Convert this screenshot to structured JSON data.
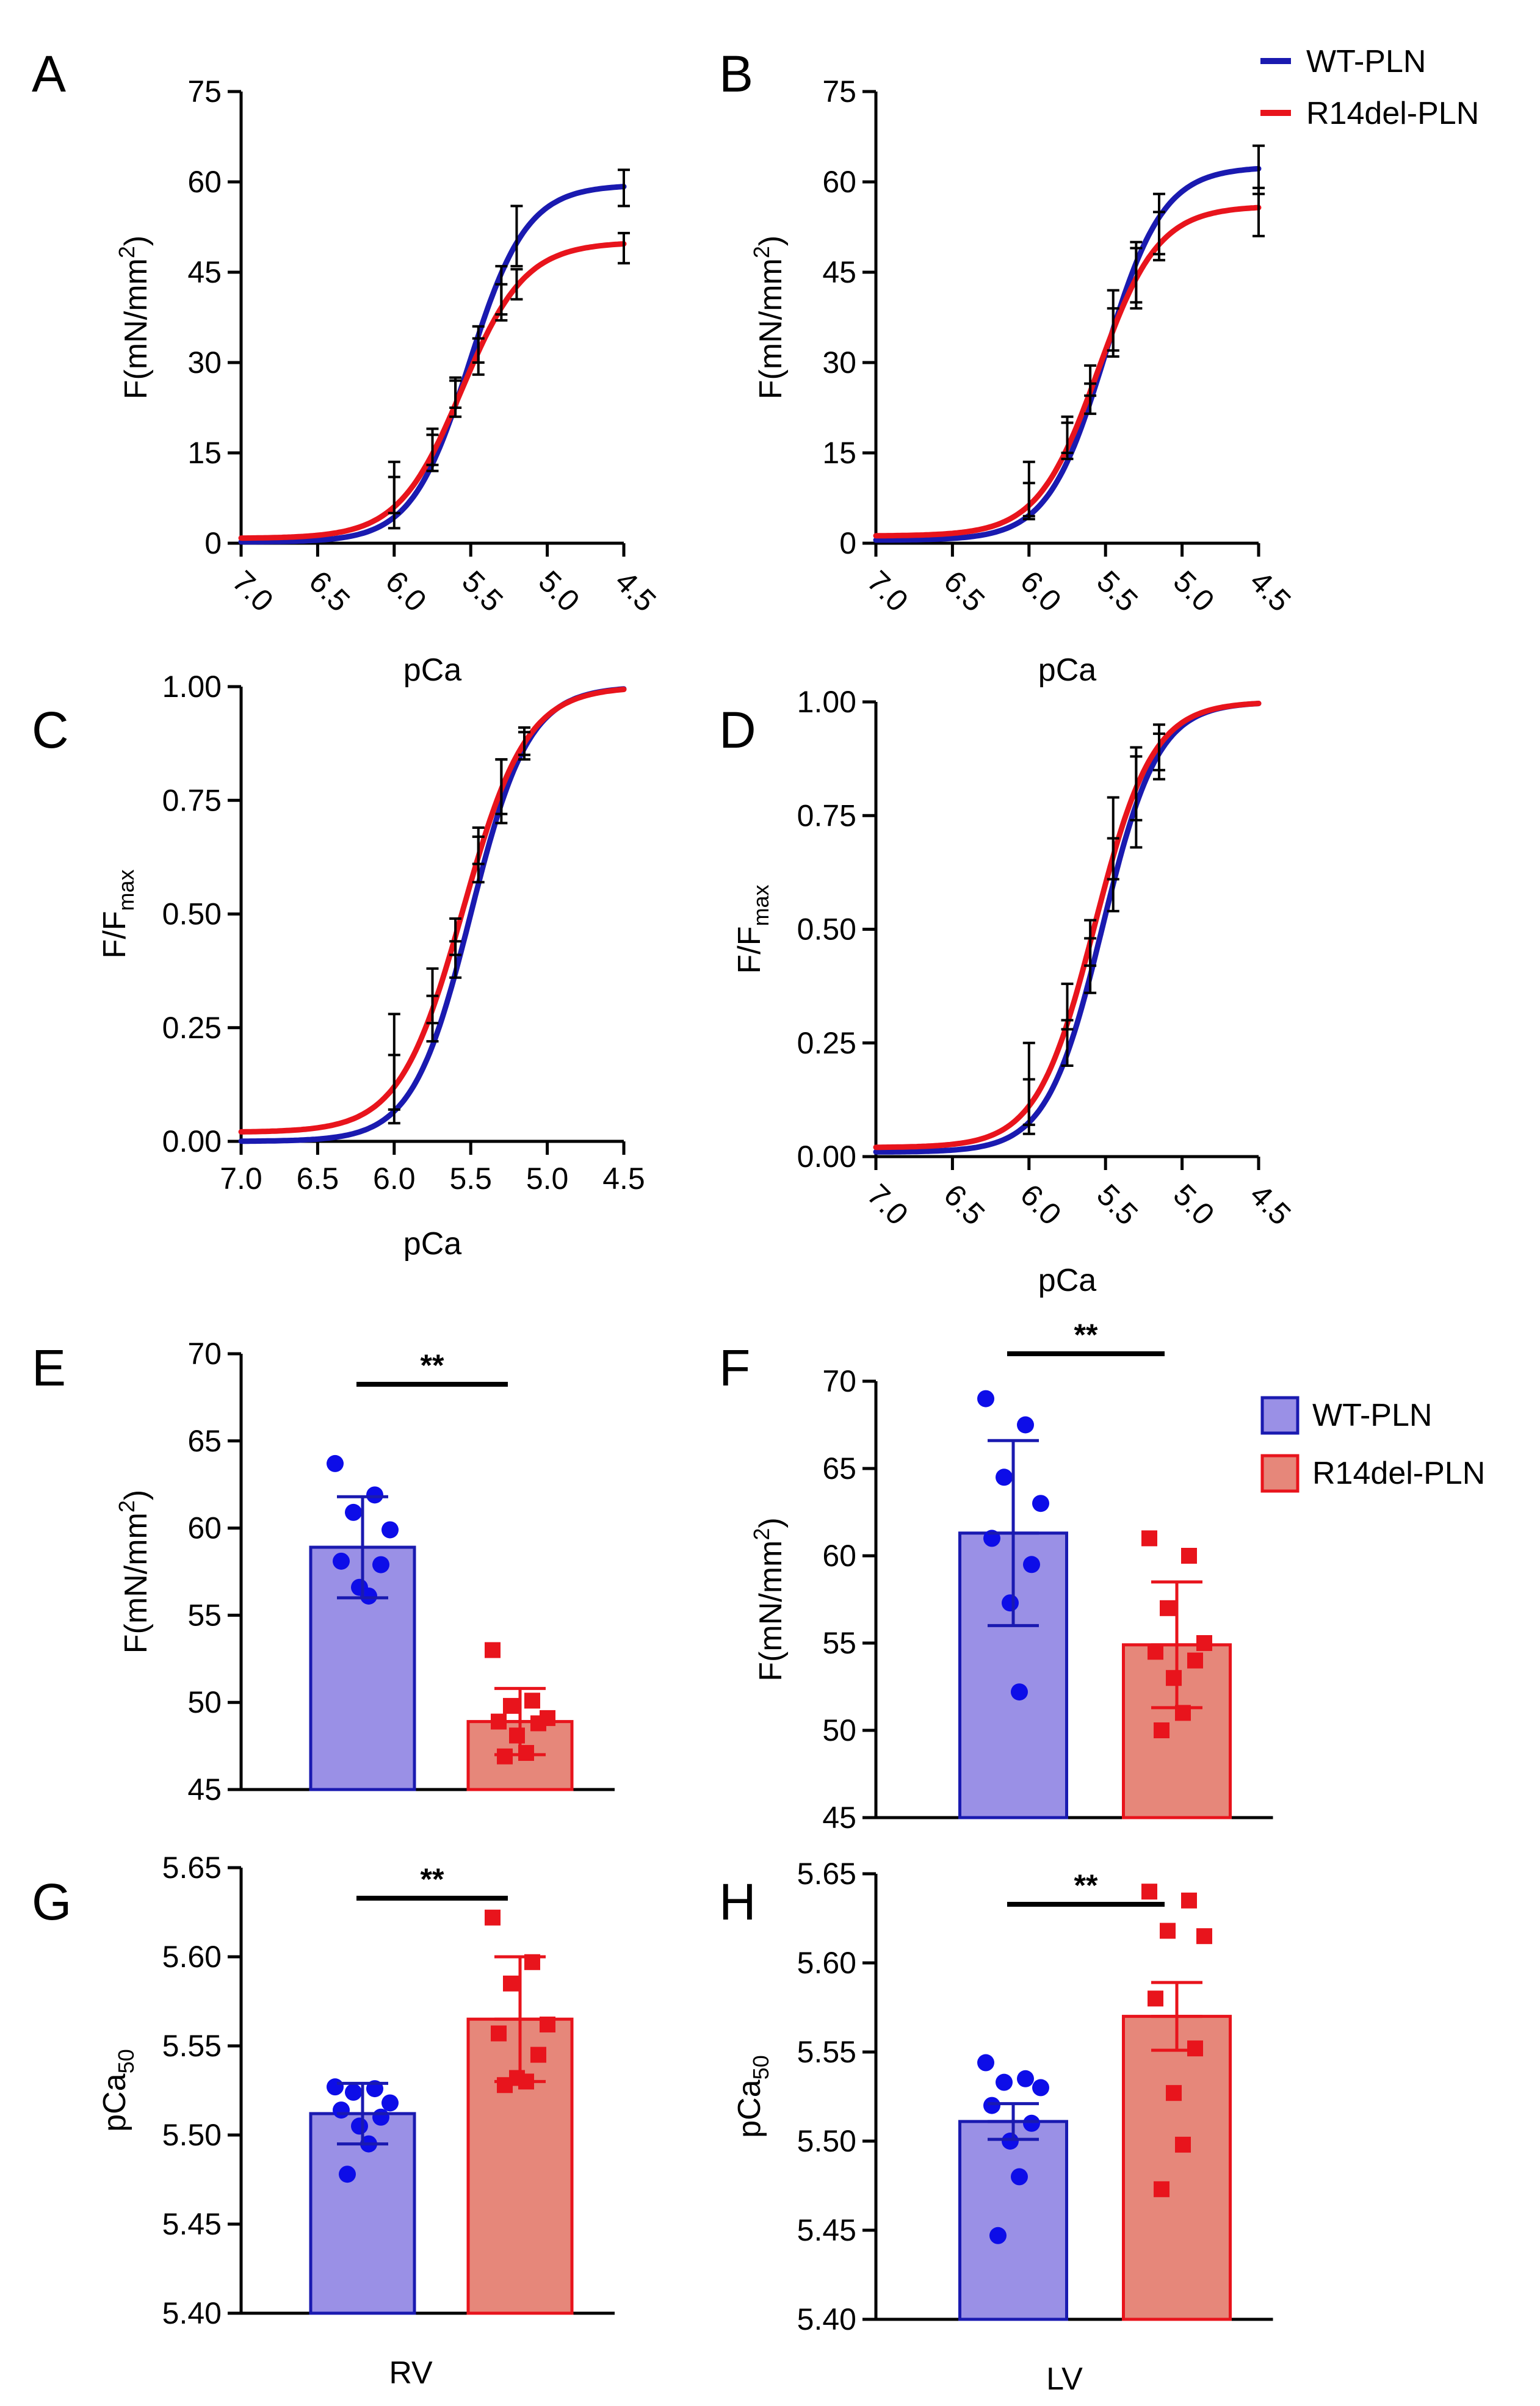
{
  "figure": {
    "legend_top": {
      "entries": [
        {
          "label": "WT-PLN",
          "color": "#1a1ab0"
        },
        {
          "label": "R14del-PLN",
          "color": "#e8141c"
        }
      ]
    },
    "legend_bar": {
      "entries": [
        {
          "label": "WT-PLN",
          "fill": "#9a90e6",
          "stroke": "#1a1ab0"
        },
        {
          "label": "R14del-PLN",
          "fill": "#e6877a",
          "stroke": "#e8141c"
        }
      ]
    },
    "colors": {
      "wt": "#1a1ab0",
      "r14": "#e8141c",
      "wt_dot": "#0d0de8",
      "r14_dot": "#e8141c",
      "wt_fill": "#9a90e6",
      "r14_fill": "#e6877a"
    }
  },
  "chart_data": [
    {
      "panel": "A",
      "type": "line",
      "xlabel": "pCa",
      "ylabel": "F(mN/mm²)",
      "ylabel_main": "F(mN/mm",
      "ylabel_sup": "2",
      "ylabel_end": ")",
      "xlim": [
        7.0,
        4.5
      ],
      "ylim": [
        0,
        75
      ],
      "xticks": [
        7.0,
        6.5,
        6.0,
        5.5,
        5.0,
        4.5
      ],
      "xtick_labels": [
        "7.0",
        "6.5",
        "6.0",
        "5.5",
        "5.0",
        "4.5"
      ],
      "xtick_rotation": 45,
      "yticks": [
        0,
        15,
        30,
        45,
        60,
        75
      ],
      "ytick_labels": [
        "0",
        "15",
        "30",
        "45",
        "60",
        "75"
      ],
      "series": [
        {
          "name": "WT-PLN",
          "fmin": 0.2,
          "fmax": 59.5,
          "pCa50": 5.51,
          "hill": 2.3,
          "points": [
            {
              "x": 6.0,
              "y": 8,
              "err": 5.5
            },
            {
              "x": 5.75,
              "y": 15,
              "err": 3
            },
            {
              "x": 5.6,
              "y": 25,
              "err": 2.5
            },
            {
              "x": 5.45,
              "y": 33,
              "err": 3
            },
            {
              "x": 5.3,
              "y": 42,
              "err": 4
            },
            {
              "x": 5.2,
              "y": 51,
              "err": 5
            },
            {
              "x": 4.5,
              "y": 59,
              "err": 3
            }
          ]
        },
        {
          "name": "R14del-PLN",
          "fmin": 0.8,
          "fmax": 50,
          "pCa50": 5.56,
          "hill": 2.1,
          "points": [
            {
              "x": 6.0,
              "y": 8,
              "err": 3
            },
            {
              "x": 5.75,
              "y": 16,
              "err": 3
            },
            {
              "x": 5.6,
              "y": 24,
              "err": 3
            },
            {
              "x": 5.45,
              "y": 31,
              "err": 3
            },
            {
              "x": 5.3,
              "y": 40,
              "err": 3
            },
            {
              "x": 5.2,
              "y": 43,
              "err": 2.5
            },
            {
              "x": 4.5,
              "y": 49,
              "err": 2.5
            }
          ]
        }
      ]
    },
    {
      "panel": "B",
      "type": "line",
      "xlabel": "pCa",
      "ylabel": "F(mN/mm²)",
      "ylabel_main": "F(mN/mm",
      "ylabel_sup": "2",
      "ylabel_end": ")",
      "xlim": [
        7.0,
        4.5
      ],
      "ylim": [
        0,
        75
      ],
      "xticks": [
        7.0,
        6.5,
        6.0,
        5.5,
        5.0,
        4.5
      ],
      "xtick_labels": [
        "7.0",
        "6.5",
        "6.0",
        "5.5",
        "5.0",
        "4.5"
      ],
      "xtick_rotation": 45,
      "yticks": [
        0,
        15,
        30,
        45,
        60,
        75
      ],
      "ytick_labels": [
        "0",
        "15",
        "30",
        "45",
        "60",
        "75"
      ],
      "series": [
        {
          "name": "WT-PLN",
          "fmin": 0.5,
          "fmax": 62.5,
          "pCa50": 5.5,
          "hill": 2.3,
          "points": [
            {
              "x": 6.0,
              "y": 9,
              "err": 4.5
            },
            {
              "x": 5.75,
              "y": 17,
              "err": 3
            },
            {
              "x": 5.6,
              "y": 24,
              "err": 2.5
            },
            {
              "x": 5.45,
              "y": 37,
              "err": 5
            },
            {
              "x": 5.3,
              "y": 45,
              "err": 5
            },
            {
              "x": 5.15,
              "y": 53,
              "err": 5
            },
            {
              "x": 4.5,
              "y": 62,
              "err": 4
            }
          ]
        },
        {
          "name": "R14del-PLN",
          "fmin": 1.2,
          "fmax": 56,
          "pCa50": 5.55,
          "hill": 2.2,
          "points": [
            {
              "x": 6.0,
              "y": 7,
              "err": 3
            },
            {
              "x": 5.75,
              "y": 18,
              "err": 3
            },
            {
              "x": 5.6,
              "y": 27,
              "err": 2.5
            },
            {
              "x": 5.45,
              "y": 35,
              "err": 4
            },
            {
              "x": 5.3,
              "y": 44,
              "err": 5
            },
            {
              "x": 5.15,
              "y": 51,
              "err": 4
            },
            {
              "x": 4.5,
              "y": 55,
              "err": 4
            }
          ]
        }
      ]
    },
    {
      "panel": "C",
      "type": "line",
      "xlabel": "pCa",
      "ylabel_main": "F/F",
      "ylabel_sub": "max",
      "xlim": [
        7.0,
        4.5
      ],
      "ylim": [
        0,
        1.0
      ],
      "xticks": [
        7.0,
        6.5,
        6.0,
        5.5,
        5.0,
        4.5
      ],
      "xtick_labels": [
        "7.0",
        "6.5",
        "6.0",
        "5.5",
        "5.0",
        "4.5"
      ],
      "xtick_rotation": 0,
      "yticks": [
        0,
        0.25,
        0.5,
        0.75,
        1.0
      ],
      "ytick_labels": [
        "0.00",
        "0.25",
        "0.50",
        "0.75",
        "1.00"
      ],
      "series": [
        {
          "name": "WT-PLN",
          "fmin": 0.0,
          "fmax": 1.0,
          "pCa50": 5.5,
          "hill": 2.3,
          "points": [
            {
              "x": 6.0,
              "y": 0.13,
              "err": 0.06
            },
            {
              "x": 5.75,
              "y": 0.27,
              "err": 0.05
            },
            {
              "x": 5.6,
              "y": 0.4,
              "err": 0.04
            },
            {
              "x": 5.45,
              "y": 0.62,
              "err": 0.05
            },
            {
              "x": 5.3,
              "y": 0.77,
              "err": 0.07
            },
            {
              "x": 5.15,
              "y": 0.88,
              "err": 0.03
            }
          ]
        },
        {
          "name": "R14del-PLN",
          "fmin": 0.02,
          "fmax": 1.0,
          "pCa50": 5.55,
          "hill": 2.1,
          "points": [
            {
              "x": 6.0,
              "y": 0.16,
              "err": 0.12
            },
            {
              "x": 5.75,
              "y": 0.32,
              "err": 0.06
            },
            {
              "x": 5.6,
              "y": 0.45,
              "err": 0.04
            },
            {
              "x": 5.45,
              "y": 0.65,
              "err": 0.04
            },
            {
              "x": 5.3,
              "y": 0.78,
              "err": 0.06
            },
            {
              "x": 5.15,
              "y": 0.87,
              "err": 0.03
            }
          ]
        }
      ]
    },
    {
      "panel": "D",
      "type": "line",
      "xlabel": "pCa",
      "ylabel_main": "F/F",
      "ylabel_sub": "max",
      "xlim": [
        7.0,
        4.5
      ],
      "ylim": [
        0,
        1.0
      ],
      "xticks": [
        7.0,
        6.5,
        6.0,
        5.5,
        5.0,
        4.5
      ],
      "xtick_labels": [
        "7.0",
        "6.5",
        "6.0",
        "5.5",
        "5.0",
        "4.5"
      ],
      "xtick_rotation": 45,
      "yticks": [
        0,
        0.25,
        0.5,
        0.75,
        1.0
      ],
      "ytick_labels": [
        "0.00",
        "0.25",
        "0.50",
        "0.75",
        "1.00"
      ],
      "series": [
        {
          "name": "WT-PLN",
          "fmin": 0.01,
          "fmax": 1.0,
          "pCa50": 5.52,
          "hill": 2.4,
          "points": [
            {
              "x": 6.0,
              "y": 0.12,
              "err": 0.05
            },
            {
              "x": 5.75,
              "y": 0.25,
              "err": 0.05
            },
            {
              "x": 5.6,
              "y": 0.42,
              "err": 0.06
            },
            {
              "x": 5.45,
              "y": 0.62,
              "err": 0.08
            },
            {
              "x": 5.3,
              "y": 0.78,
              "err": 0.1
            },
            {
              "x": 5.15,
              "y": 0.88,
              "err": 0.05
            }
          ]
        },
        {
          "name": "R14del-PLN",
          "fmin": 0.02,
          "fmax": 1.0,
          "pCa50": 5.57,
          "hill": 2.3,
          "points": [
            {
              "x": 6.0,
              "y": 0.15,
              "err": 0.1
            },
            {
              "x": 5.75,
              "y": 0.33,
              "err": 0.05
            },
            {
              "x": 5.6,
              "y": 0.47,
              "err": 0.05
            },
            {
              "x": 5.45,
              "y": 0.7,
              "err": 0.09
            },
            {
              "x": 5.3,
              "y": 0.82,
              "err": 0.08
            },
            {
              "x": 5.15,
              "y": 0.9,
              "err": 0.05
            }
          ]
        }
      ]
    },
    {
      "panel": "E",
      "type": "bar",
      "ylabel": "F(mN/mm²)",
      "ylabel_main": "F(mN/mm",
      "ylabel_sup": "2",
      "ylabel_end": ")",
      "ylim": [
        45,
        70
      ],
      "yticks": [
        45,
        50,
        55,
        60,
        65,
        70
      ],
      "ytick_labels": [
        "45",
        "50",
        "55",
        "60",
        "65",
        "70"
      ],
      "xlabel": "",
      "significance": "**",
      "series": [
        {
          "name": "WT-PLN",
          "mean": 58.9,
          "err": 2.9,
          "marker": "circle",
          "points": [
            63.7,
            61.9,
            60.9,
            59.9,
            58.1,
            57.9,
            56.6,
            56.1
          ]
        },
        {
          "name": "R14del-PLN",
          "mean": 48.9,
          "err": 1.9,
          "marker": "square",
          "points": [
            53.0,
            50.1,
            49.8,
            49.1,
            48.9,
            48.8,
            48.1,
            47.1,
            46.9
          ]
        }
      ]
    },
    {
      "panel": "F",
      "type": "bar",
      "ylabel": "F(mN/mm²)",
      "ylabel_main": "F(mN/mm",
      "ylabel_sup": "2",
      "ylabel_end": ")",
      "ylim": [
        45,
        70
      ],
      "yticks": [
        45,
        50,
        55,
        60,
        65,
        70
      ],
      "ytick_labels": [
        "45",
        "50",
        "55",
        "60",
        "65",
        "70"
      ],
      "xlabel": "",
      "significance": "**",
      "series": [
        {
          "name": "WT-PLN",
          "mean": 61.3,
          "err": 5.3,
          "marker": "circle",
          "points": [
            69.0,
            67.5,
            64.5,
            63.0,
            61.0,
            59.5,
            57.3,
            52.2
          ]
        },
        {
          "name": "R14del-PLN",
          "mean": 54.9,
          "err": 3.6,
          "marker": "square",
          "points": [
            61.0,
            60.0,
            57.0,
            55.0,
            54.5,
            54.0,
            53.0,
            51.0,
            50.0
          ]
        }
      ]
    },
    {
      "panel": "G",
      "type": "bar",
      "ylabel_main": "pCa",
      "ylabel_sub": "50",
      "ylim": [
        5.4,
        5.65
      ],
      "yticks": [
        5.4,
        5.45,
        5.5,
        5.55,
        5.6,
        5.65
      ],
      "ytick_labels": [
        "5.40",
        "5.45",
        "5.50",
        "5.55",
        "5.60",
        "5.65"
      ],
      "xlabel": "RV",
      "significance": "**",
      "series": [
        {
          "name": "WT-PLN",
          "mean": 5.512,
          "err": 0.017,
          "marker": "circle",
          "points": [
            5.527,
            5.526,
            5.524,
            5.518,
            5.514,
            5.51,
            5.505,
            5.495,
            5.478
          ]
        },
        {
          "name": "R14del-PLN",
          "mean": 5.565,
          "err": 0.035,
          "marker": "square",
          "points": [
            5.622,
            5.597,
            5.585,
            5.562,
            5.557,
            5.545,
            5.532,
            5.53,
            5.528
          ]
        }
      ]
    },
    {
      "panel": "H",
      "type": "bar",
      "ylabel_main": "pCa",
      "ylabel_sub": "50",
      "ylim": [
        5.4,
        5.65
      ],
      "yticks": [
        5.4,
        5.45,
        5.5,
        5.55,
        5.6,
        5.65
      ],
      "ytick_labels": [
        "5.40",
        "5.45",
        "5.50",
        "5.55",
        "5.60",
        "5.65"
      ],
      "xlabel": "LV",
      "significance": "**",
      "series": [
        {
          "name": "WT-PLN",
          "mean": 5.511,
          "err": 0.01,
          "marker": "circle",
          "points": [
            5.544,
            5.535,
            5.533,
            5.53,
            5.52,
            5.51,
            5.5,
            5.48,
            5.447
          ]
        },
        {
          "name": "R14del-PLN",
          "mean": 5.57,
          "err": 0.019,
          "marker": "square",
          "points": [
            5.64,
            5.635,
            5.618,
            5.615,
            5.58,
            5.552,
            5.527,
            5.498,
            5.473
          ]
        }
      ]
    }
  ]
}
